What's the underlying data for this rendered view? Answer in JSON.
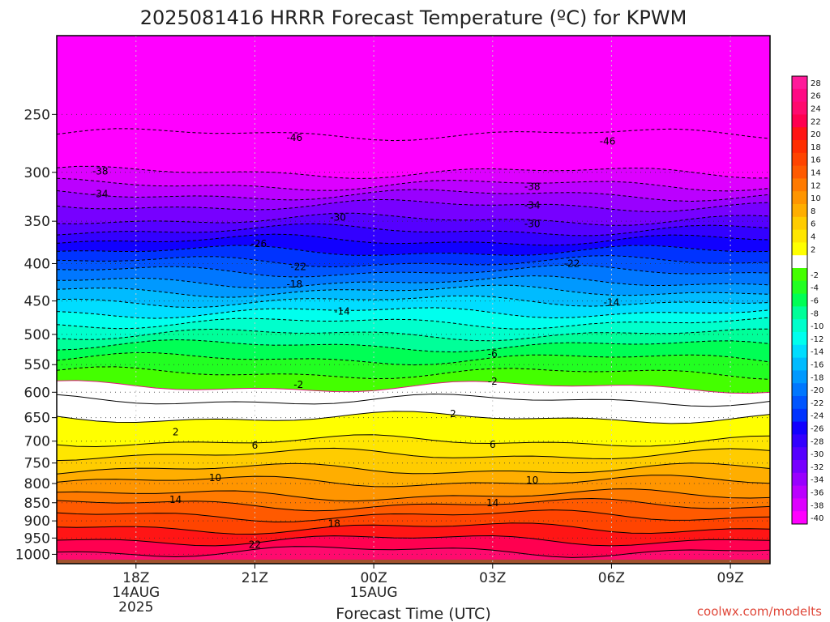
{
  "chart_data": {
    "type": "heatmap",
    "title": "2025081416 HRRR Forecast Temperature (ºC) for KPWM",
    "xlabel": "Forecast Time (UTC)",
    "ylabel": "",
    "credit": "coolwx.com/modelts",
    "x_ticks": [
      {
        "h": 18,
        "label": "18Z",
        "sub1": "14AUG",
        "sub2": "2025"
      },
      {
        "h": 21,
        "label": "21Z",
        "sub1": "",
        "sub2": ""
      },
      {
        "h": 24,
        "label": "00Z",
        "sub1": "15AUG",
        "sub2": ""
      },
      {
        "h": 27,
        "label": "03Z",
        "sub1": "",
        "sub2": ""
      },
      {
        "h": 30,
        "label": "06Z",
        "sub1": "",
        "sub2": ""
      },
      {
        "h": 33,
        "label": "09Z",
        "sub1": "",
        "sub2": ""
      }
    ],
    "xlim": [
      16,
      34
    ],
    "y_ticks": [
      250,
      300,
      350,
      400,
      450,
      500,
      550,
      600,
      650,
      700,
      750,
      800,
      850,
      900,
      950,
      1000
    ],
    "ylim_hpa": [
      195,
      1030
    ],
    "ground": {
      "hpa": 1017,
      "color": "#a0522d"
    },
    "colorbar": [
      {
        "label": "28",
        "color": "#ff1a9a"
      },
      {
        "label": "26",
        "color": "#ff0a84"
      },
      {
        "label": "24",
        "color": "#ff0a6e"
      },
      {
        "label": "22",
        "color": "#ff0050"
      },
      {
        "label": "20",
        "color": "#ff1515"
      },
      {
        "label": "18",
        "color": "#ff2e00"
      },
      {
        "label": "16",
        "color": "#ff4400"
      },
      {
        "label": "14",
        "color": "#ff5a00"
      },
      {
        "label": "12",
        "color": "#ff7a00"
      },
      {
        "label": "10",
        "color": "#ff9500"
      },
      {
        "label": "8",
        "color": "#ffae00"
      },
      {
        "label": "6",
        "color": "#ffcc00"
      },
      {
        "label": "4",
        "color": "#ffe600"
      },
      {
        "label": "2",
        "color": "#ffff00"
      },
      {
        "label": "",
        "color": "#ffffff"
      },
      {
        "label": "-2",
        "color": "#44ff00"
      },
      {
        "label": "-4",
        "color": "#22ff22"
      },
      {
        "label": "-6",
        "color": "#00ff55"
      },
      {
        "label": "-8",
        "color": "#00ff99"
      },
      {
        "label": "-10",
        "color": "#00ffcc"
      },
      {
        "label": "-12",
        "color": "#00ffee"
      },
      {
        "label": "-14",
        "color": "#00ddff"
      },
      {
        "label": "-16",
        "color": "#00bbff"
      },
      {
        "label": "-18",
        "color": "#0099ff"
      },
      {
        "label": "-20",
        "color": "#0077ff"
      },
      {
        "label": "-22",
        "color": "#0055ff"
      },
      {
        "label": "-24",
        "color": "#0033ff"
      },
      {
        "label": "-26",
        "color": "#1100ff"
      },
      {
        "label": "-28",
        "color": "#3300ff"
      },
      {
        "label": "-30",
        "color": "#5500ff"
      },
      {
        "label": "-32",
        "color": "#7700ff"
      },
      {
        "label": "-34",
        "color": "#9900ff"
      },
      {
        "label": "-36",
        "color": "#bb00ff"
      },
      {
        "label": "-38",
        "color": "#dd00ff"
      },
      {
        "label": "-40",
        "color": "#ff00ff"
      }
    ],
    "temperature_bands": [
      {
        "temp": -50,
        "hpa": 200,
        "color": "#ff00ff"
      },
      {
        "temp": -46,
        "hpa": 266,
        "color": "#ff00ff"
      },
      {
        "temp": -38,
        "hpa": 300,
        "color": "#dd00ff"
      },
      {
        "temp": -36,
        "hpa": 312,
        "color": "#bb00ff"
      },
      {
        "temp": -34,
        "hpa": 322,
        "color": "#9900ff"
      },
      {
        "temp": -32,
        "hpa": 333,
        "color": "#7700ff"
      },
      {
        "temp": -30,
        "hpa": 348,
        "color": "#5500ff"
      },
      {
        "temp": -28,
        "hpa": 360,
        "color": "#3300ff"
      },
      {
        "temp": -26,
        "hpa": 372,
        "color": "#1100ff"
      },
      {
        "temp": -24,
        "hpa": 385,
        "color": "#0033ff"
      },
      {
        "temp": -22,
        "hpa": 398,
        "color": "#0055ff"
      },
      {
        "temp": -20,
        "hpa": 410,
        "color": "#0077ff"
      },
      {
        "temp": -18,
        "hpa": 424,
        "color": "#0099ff"
      },
      {
        "temp": -16,
        "hpa": 436,
        "color": "#00bbff"
      },
      {
        "temp": -14,
        "hpa": 450,
        "color": "#00ddff"
      },
      {
        "temp": -12,
        "hpa": 466,
        "color": "#00ffee"
      },
      {
        "temp": -10,
        "hpa": 482,
        "color": "#00ffcc"
      },
      {
        "temp": -8,
        "hpa": 500,
        "color": "#00ff99"
      },
      {
        "temp": -6,
        "hpa": 518,
        "color": "#00ff55"
      },
      {
        "temp": -4,
        "hpa": 540,
        "color": "#22ff22"
      },
      {
        "temp": -2,
        "hpa": 565,
        "color": "#44ff00"
      },
      {
        "temp": 0,
        "hpa": 590,
        "color": "#ffffff"
      },
      {
        "temp": 2,
        "hpa": 615,
        "color": "#ffffff"
      },
      {
        "temp": 4,
        "hpa": 650,
        "color": "#ffff00"
      },
      {
        "temp": 6,
        "hpa": 700,
        "color": "#ffe600"
      },
      {
        "temp": 8,
        "hpa": 730,
        "color": "#ffcc00"
      },
      {
        "temp": 10,
        "hpa": 765,
        "color": "#ffae00"
      },
      {
        "temp": 12,
        "hpa": 795,
        "color": "#ff9500"
      },
      {
        "temp": 14,
        "hpa": 830,
        "color": "#ff7a00"
      },
      {
        "temp": 16,
        "hpa": 855,
        "color": "#ff5a00"
      },
      {
        "temp": 18,
        "hpa": 885,
        "color": "#ff4400"
      },
      {
        "temp": 20,
        "hpa": 920,
        "color": "#ff1515"
      },
      {
        "temp": 22,
        "hpa": 955,
        "color": "#ff0050"
      },
      {
        "temp": 24,
        "hpa": 990,
        "color": "#ff0a6e"
      }
    ],
    "contour_labels": [
      {
        "text": "-46",
        "h": 22.0,
        "hpa": 269
      },
      {
        "text": "-46",
        "h": 29.9,
        "hpa": 272
      },
      {
        "text": "-38",
        "h": 17.1,
        "hpa": 299
      },
      {
        "text": "-38",
        "h": 28.0,
        "hpa": 314
      },
      {
        "text": "-34",
        "h": 17.1,
        "hpa": 321
      },
      {
        "text": "-34",
        "h": 28.0,
        "hpa": 333
      },
      {
        "text": "-30",
        "h": 23.1,
        "hpa": 346
      },
      {
        "text": "-30",
        "h": 28.0,
        "hpa": 353
      },
      {
        "text": "-26",
        "h": 21.1,
        "hpa": 376
      },
      {
        "text": "-22",
        "h": 22.1,
        "hpa": 404
      },
      {
        "text": "-22",
        "h": 29.0,
        "hpa": 400
      },
      {
        "text": "-18",
        "h": 22.0,
        "hpa": 427
      },
      {
        "text": "-14",
        "h": 23.2,
        "hpa": 465
      },
      {
        "text": "-14",
        "h": 30.0,
        "hpa": 452
      },
      {
        "text": "-6",
        "h": 27.0,
        "hpa": 532
      },
      {
        "text": "-2",
        "h": 22.1,
        "hpa": 586
      },
      {
        "text": "-2",
        "h": 27.0,
        "hpa": 580
      },
      {
        "text": "2",
        "h": 19.0,
        "hpa": 680
      },
      {
        "text": "2",
        "h": 26.0,
        "hpa": 642
      },
      {
        "text": "6",
        "h": 21.0,
        "hpa": 710
      },
      {
        "text": "6",
        "h": 27.0,
        "hpa": 708
      },
      {
        "text": "10",
        "h": 20.0,
        "hpa": 786
      },
      {
        "text": "10",
        "h": 28.0,
        "hpa": 792
      },
      {
        "text": "14",
        "h": 19.0,
        "hpa": 842
      },
      {
        "text": "14",
        "h": 27.0,
        "hpa": 851
      },
      {
        "text": "18",
        "h": 23.0,
        "hpa": 908
      },
      {
        "text": "22",
        "h": 21.0,
        "hpa": 970
      }
    ]
  }
}
